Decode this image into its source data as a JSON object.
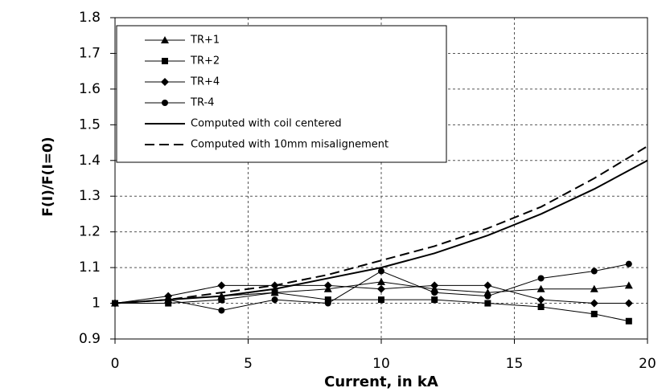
{
  "chart_data": {
    "type": "line",
    "x_label": "Current, in kA",
    "y_label": "F(I)/F(I=0)",
    "xlim": [
      0,
      20
    ],
    "xticks": [
      0,
      5,
      10,
      15,
      20
    ],
    "ylim": [
      0.9,
      1.8
    ],
    "yticks": [
      0.9,
      1,
      1.1,
      1.2,
      1.3,
      1.4,
      1.5,
      1.6,
      1.7,
      1.8
    ],
    "grid": true,
    "legend": "upper-left",
    "series": [
      {
        "name": "TR+1",
        "color": "#000000",
        "marker": "triangle",
        "dash": "solid",
        "x": [
          0,
          2,
          4,
          6,
          8,
          10,
          12,
          14,
          16,
          18,
          19.3
        ],
        "values": [
          1.0,
          1.01,
          1.02,
          1.03,
          1.04,
          1.06,
          1.04,
          1.03,
          1.04,
          1.04,
          1.05
        ]
      },
      {
        "name": "TR+2",
        "color": "#000000",
        "marker": "square",
        "dash": "solid",
        "x": [
          0,
          2,
          4,
          6,
          8,
          10,
          12,
          14,
          16,
          18,
          19.3
        ],
        "values": [
          1.0,
          1.0,
          1.01,
          1.03,
          1.01,
          1.01,
          1.01,
          1.0,
          0.99,
          0.97,
          0.95
        ]
      },
      {
        "name": "TR+4",
        "color": "#000000",
        "marker": "diamond",
        "dash": "solid",
        "x": [
          0,
          2,
          4,
          6,
          8,
          10,
          12,
          14,
          16,
          18,
          19.3
        ],
        "values": [
          1.0,
          1.02,
          1.05,
          1.05,
          1.05,
          1.04,
          1.05,
          1.05,
          1.01,
          1.0,
          1.0
        ]
      },
      {
        "name": "TR-4",
        "color": "#000000",
        "marker": "circle",
        "dash": "solid",
        "x": [
          0,
          2,
          4,
          6,
          8,
          10,
          12,
          14,
          16,
          18,
          19.3
        ],
        "values": [
          1.0,
          1.01,
          0.98,
          1.01,
          1.0,
          1.09,
          1.03,
          1.02,
          1.07,
          1.09,
          1.11
        ]
      },
      {
        "name": "Computed with coil centered",
        "color": "#000000",
        "marker": "none",
        "dash": "solid",
        "x": [
          0,
          2,
          4,
          6,
          8,
          10,
          12,
          14,
          16,
          18,
          20
        ],
        "values": [
          1.0,
          1.01,
          1.02,
          1.04,
          1.07,
          1.1,
          1.14,
          1.19,
          1.25,
          1.32,
          1.4
        ]
      },
      {
        "name": "Computed with 10mm misalignement",
        "color": "#000000",
        "marker": "none",
        "dash": "dashed",
        "x": [
          0,
          2,
          4,
          6,
          8,
          10,
          12,
          14,
          16,
          18,
          20
        ],
        "values": [
          1.0,
          1.01,
          1.03,
          1.05,
          1.08,
          1.12,
          1.16,
          1.21,
          1.27,
          1.35,
          1.44
        ]
      }
    ]
  }
}
